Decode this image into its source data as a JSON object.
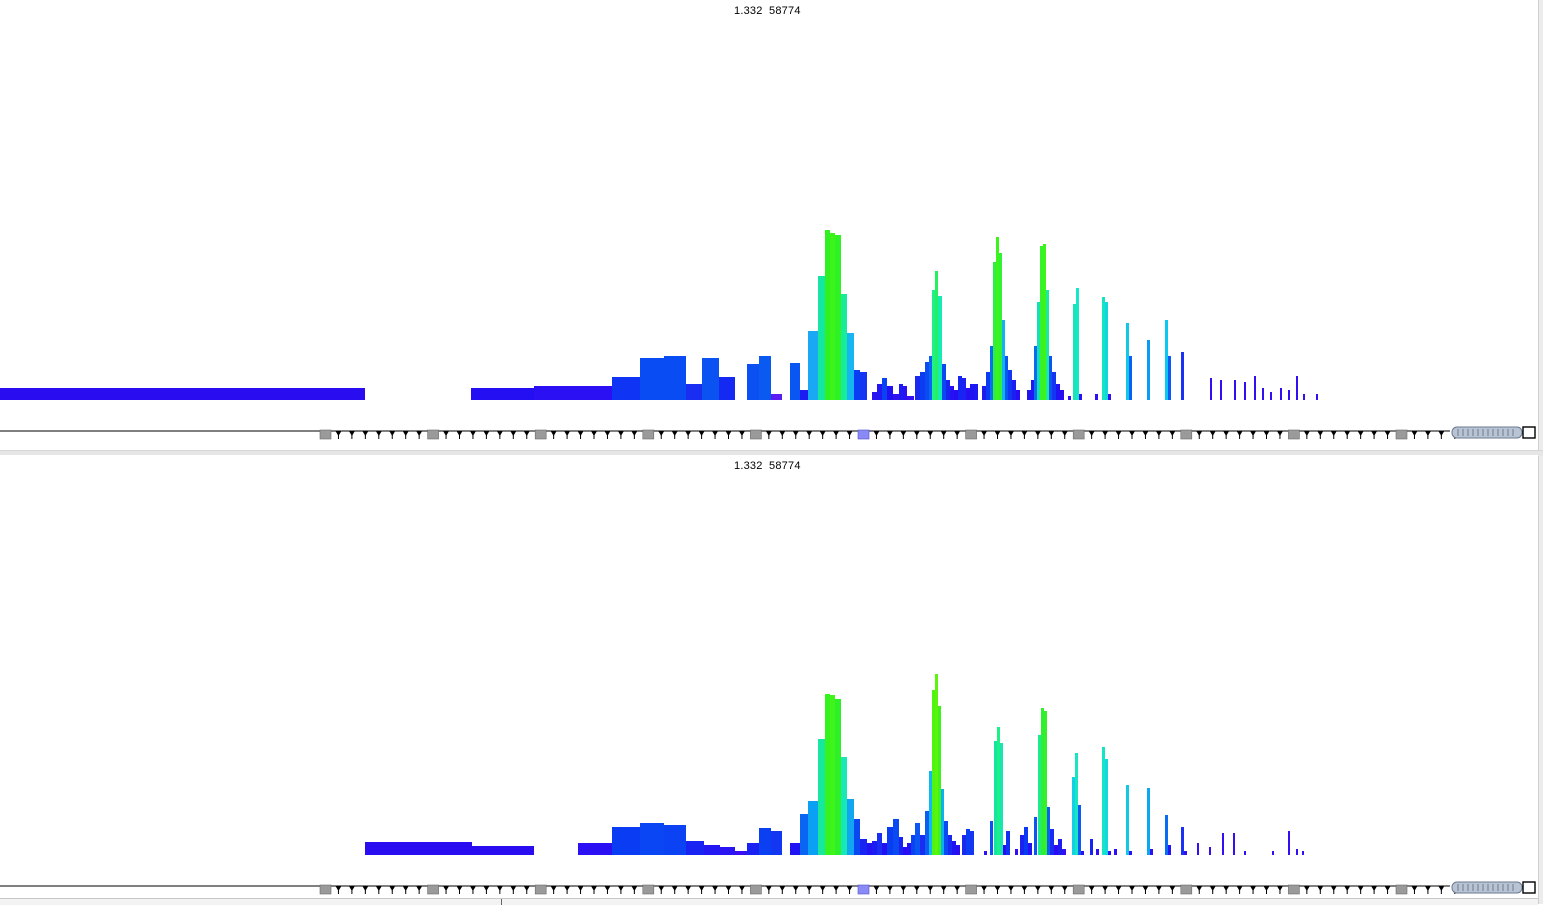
{
  "panes": [
    {
      "id": "top",
      "readout_mz": "1.332",
      "readout_intensity": "58774",
      "peaks": [
        [
          0,
          365,
          388,
          400,
          "#2a0cf0"
        ],
        [
          471,
          534,
          388,
          400,
          "#240ef2"
        ],
        [
          534,
          612,
          386,
          400,
          "#2a10f2"
        ],
        [
          612,
          640,
          377,
          400,
          "#1034f4"
        ],
        [
          640,
          664,
          358,
          400,
          "#0a4cf4"
        ],
        [
          664,
          686,
          356,
          400,
          "#0a4cf4"
        ],
        [
          686,
          702,
          384,
          400,
          "#1a2ef2"
        ],
        [
          702,
          719,
          358,
          400,
          "#0a52f2"
        ],
        [
          719,
          735,
          377,
          400,
          "#142af2"
        ],
        [
          747,
          759,
          364,
          400,
          "#0a50f2"
        ],
        [
          759,
          771,
          356,
          400,
          "#0a5af2"
        ],
        [
          771,
          782,
          394,
          400,
          "#5a1ef2"
        ],
        [
          790,
          800,
          363,
          400,
          "#0a56f2"
        ],
        [
          800,
          808,
          390,
          400,
          "#1a1cf2"
        ],
        [
          808,
          818,
          331,
          400,
          "#1aa8f4"
        ],
        [
          818,
          825,
          276,
          400,
          "#14e6a4"
        ],
        [
          825,
          830,
          230,
          400,
          "#30f020"
        ],
        [
          830,
          835,
          233,
          400,
          "#3cf41a"
        ],
        [
          835,
          841,
          235,
          400,
          "#2ef224"
        ],
        [
          841,
          847,
          294,
          400,
          "#18ec98"
        ],
        [
          847,
          854,
          333,
          400,
          "#16b6f0"
        ],
        [
          854,
          860,
          370,
          400,
          "#0a3ef2"
        ],
        [
          860,
          867,
          372,
          400,
          "#1236f2"
        ],
        [
          872,
          877,
          392,
          400,
          "#2a14f2"
        ],
        [
          877,
          882,
          384,
          400,
          "#2418f2"
        ],
        [
          882,
          887,
          378,
          400,
          "#0a44f2"
        ],
        [
          887,
          893,
          386,
          400,
          "#2010f2"
        ],
        [
          893,
          899,
          394,
          400,
          "#3012f2"
        ],
        [
          899,
          903,
          384,
          400,
          "#1c1cf2"
        ],
        [
          903,
          907,
          386,
          400,
          "#2a10f2"
        ],
        [
          907,
          914,
          396,
          400,
          "#3a0ef2"
        ],
        [
          915,
          920,
          376,
          400,
          "#1a28f2"
        ],
        [
          920,
          925,
          372,
          400,
          "#0a3cf2"
        ],
        [
          925,
          929,
          362,
          400,
          "#0a4cf2"
        ],
        [
          929,
          932,
          356,
          400,
          "#0a64f2"
        ],
        [
          932,
          935,
          290,
          400,
          "#1ef08a"
        ],
        [
          935,
          938,
          271,
          400,
          "#26f060"
        ],
        [
          938,
          942,
          296,
          400,
          "#14ecb4"
        ],
        [
          942,
          946,
          364,
          400,
          "#0a48f2"
        ],
        [
          946,
          950,
          380,
          400,
          "#1a22f2"
        ],
        [
          950,
          954,
          386,
          400,
          "#2412f2"
        ],
        [
          954,
          958,
          390,
          400,
          "#2a0cf2"
        ],
        [
          958,
          962,
          376,
          400,
          "#1626f2"
        ],
        [
          962,
          966,
          378,
          400,
          "#1c22f2"
        ],
        [
          966,
          970,
          388,
          400,
          "#2610f2"
        ],
        [
          970,
          974,
          384,
          400,
          "#2014f2"
        ],
        [
          974,
          978,
          384,
          400,
          "#1c1af2"
        ],
        [
          982,
          986,
          386,
          400,
          "#1e1af2"
        ],
        [
          986,
          990,
          372,
          400,
          "#0a3cf2"
        ],
        [
          990,
          993,
          346,
          400,
          "#0a70f2"
        ],
        [
          993,
          996,
          262,
          400,
          "#2ef040"
        ],
        [
          996,
          999,
          237,
          400,
          "#3cf41a"
        ],
        [
          999,
          1002,
          253,
          400,
          "#30f038"
        ],
        [
          1002,
          1005,
          320,
          400,
          "#10b2f2"
        ],
        [
          1005,
          1008,
          356,
          400,
          "#0a58f2"
        ],
        [
          1008,
          1012,
          370,
          400,
          "#1236f2"
        ],
        [
          1012,
          1016,
          380,
          400,
          "#1a20f2"
        ],
        [
          1016,
          1020,
          390,
          400,
          "#2a0cf2"
        ],
        [
          1027,
          1031,
          390,
          400,
          "#2412f2"
        ],
        [
          1031,
          1034,
          380,
          400,
          "#1c1af2"
        ],
        [
          1034,
          1037,
          346,
          400,
          "#0a6cf2"
        ],
        [
          1037,
          1040,
          302,
          400,
          "#16e0b6"
        ],
        [
          1040,
          1043,
          246,
          400,
          "#36f22a"
        ],
        [
          1043,
          1046,
          244,
          400,
          "#3cf41a"
        ],
        [
          1046,
          1049,
          290,
          400,
          "#1cec9a"
        ],
        [
          1049,
          1052,
          356,
          400,
          "#0a56f2"
        ],
        [
          1052,
          1056,
          372,
          400,
          "#1236f2"
        ],
        [
          1056,
          1060,
          384,
          400,
          "#2014f2"
        ],
        [
          1060,
          1064,
          390,
          400,
          "#2a0cf2"
        ],
        [
          1068,
          1071,
          396,
          400,
          "#3010f2"
        ],
        [
          1073,
          1076,
          304,
          400,
          "#18e4b8"
        ],
        [
          1076,
          1079,
          288,
          400,
          "#14e8c6"
        ],
        [
          1079,
          1082,
          394,
          400,
          "#2a10f2"
        ],
        [
          1095,
          1098,
          394,
          400,
          "#2a10f2"
        ],
        [
          1102,
          1105,
          297,
          400,
          "#16e4c0"
        ],
        [
          1105,
          1108,
          302,
          400,
          "#12d6e0"
        ],
        [
          1108,
          1111,
          394,
          400,
          "#3010f2"
        ],
        [
          1126,
          1129,
          323,
          400,
          "#12c8e8"
        ],
        [
          1129,
          1132,
          356,
          400,
          "#0a60f2"
        ],
        [
          1147,
          1150,
          340,
          400,
          "#0a9cf2"
        ],
        [
          1165,
          1168,
          320,
          400,
          "#0ac8f4"
        ],
        [
          1168,
          1171,
          356,
          400,
          "#0a5cf2"
        ],
        [
          1181,
          1184,
          352,
          400,
          "#1a30f2"
        ],
        [
          1210,
          1212,
          378,
          400,
          "#3010f2"
        ],
        [
          1220,
          1222,
          380,
          400,
          "#3010f2"
        ],
        [
          1234,
          1236,
          380,
          400,
          "#3010f2"
        ],
        [
          1244,
          1246,
          382,
          400,
          "#3010f2"
        ],
        [
          1254,
          1256,
          376,
          400,
          "#3010f2"
        ],
        [
          1262,
          1264,
          388,
          400,
          "#3010f2"
        ],
        [
          1270,
          1272,
          392,
          400,
          "#3010f2"
        ],
        [
          1280,
          1282,
          388,
          400,
          "#3010f2"
        ],
        [
          1288,
          1290,
          390,
          400,
          "#3010f2"
        ],
        [
          1296,
          1298,
          376,
          400,
          "#3010f2"
        ],
        [
          1303,
          1305,
          394,
          400,
          "#3010f2"
        ],
        [
          1316,
          1318,
          394,
          400,
          "#3010f2"
        ]
      ]
    },
    {
      "id": "bottom",
      "readout_mz": "1.332",
      "readout_intensity": "58774",
      "peaks": [
        [
          365,
          472,
          387,
          400,
          "#2a0cf0"
        ],
        [
          472,
          534,
          391,
          400,
          "#2a0cf0"
        ],
        [
          578,
          612,
          388,
          400,
          "#2a10f2"
        ],
        [
          612,
          640,
          372,
          400,
          "#0a3cf4"
        ],
        [
          640,
          664,
          368,
          400,
          "#0a46f4"
        ],
        [
          664,
          686,
          370,
          400,
          "#0a42f4"
        ],
        [
          686,
          704,
          386,
          400,
          "#1a24f2"
        ],
        [
          704,
          720,
          390,
          400,
          "#2418f2"
        ],
        [
          720,
          735,
          392,
          400,
          "#2a14f2"
        ],
        [
          735,
          747,
          396,
          400,
          "#3a0ef2"
        ],
        [
          747,
          759,
          388,
          400,
          "#1a22f2"
        ],
        [
          759,
          771,
          373,
          400,
          "#0a40f2"
        ],
        [
          771,
          782,
          376,
          400,
          "#1236f2"
        ],
        [
          790,
          800,
          388,
          400,
          "#2014f2"
        ],
        [
          800,
          808,
          359,
          400,
          "#0a66f2"
        ],
        [
          808,
          818,
          346,
          400,
          "#0aa0f4"
        ],
        [
          818,
          825,
          284,
          400,
          "#16e8a0"
        ],
        [
          825,
          830,
          239,
          400,
          "#36f21e"
        ],
        [
          830,
          835,
          240,
          400,
          "#3ef418"
        ],
        [
          835,
          841,
          244,
          400,
          "#2ef028"
        ],
        [
          841,
          847,
          302,
          400,
          "#18e8b4"
        ],
        [
          847,
          854,
          344,
          400,
          "#10a6f0"
        ],
        [
          854,
          860,
          364,
          400,
          "#0a48f2"
        ],
        [
          860,
          867,
          384,
          400,
          "#1a24f2"
        ],
        [
          867,
          872,
          388,
          400,
          "#2014f2"
        ],
        [
          872,
          877,
          386,
          400,
          "#1c1cf2"
        ],
        [
          877,
          882,
          378,
          400,
          "#1a2ef2"
        ],
        [
          882,
          887,
          388,
          400,
          "#2010f2"
        ],
        [
          887,
          893,
          372,
          400,
          "#0a3cf2"
        ],
        [
          893,
          899,
          364,
          400,
          "#0a4af2"
        ],
        [
          899,
          903,
          382,
          400,
          "#1a22f2"
        ],
        [
          903,
          907,
          392,
          400,
          "#2a0cf2"
        ],
        [
          907,
          911,
          388,
          400,
          "#2412f2"
        ],
        [
          911,
          915,
          380,
          400,
          "#0a44f2"
        ],
        [
          915,
          920,
          368,
          400,
          "#0a56f2"
        ],
        [
          920,
          925,
          380,
          400,
          "#1a2cf2"
        ],
        [
          925,
          929,
          356,
          400,
          "#0a5ef2"
        ],
        [
          929,
          932,
          316,
          400,
          "#10b8f2"
        ],
        [
          932,
          935,
          235,
          400,
          "#4ef414"
        ],
        [
          935,
          938,
          219,
          400,
          "#5cf40a"
        ],
        [
          938,
          941,
          251,
          400,
          "#3ef21c"
        ],
        [
          941,
          944,
          334,
          400,
          "#0ab0f2"
        ],
        [
          944,
          948,
          366,
          400,
          "#0a4cf2"
        ],
        [
          948,
          952,
          380,
          400,
          "#1a28f2"
        ],
        [
          952,
          956,
          386,
          400,
          "#2014f2"
        ],
        [
          956,
          960,
          390,
          400,
          "#2a0cf2"
        ],
        [
          962,
          966,
          380,
          400,
          "#1a28f2"
        ],
        [
          966,
          970,
          374,
          400,
          "#0a3ef2"
        ],
        [
          970,
          974,
          376,
          400,
          "#1236f2"
        ],
        [
          984,
          987,
          396,
          400,
          "#3010f2"
        ],
        [
          990,
          993,
          366,
          400,
          "#0a52f2"
        ],
        [
          994,
          997,
          286,
          400,
          "#16e4a4"
        ],
        [
          997,
          1000,
          272,
          400,
          "#1ef088"
        ],
        [
          1000,
          1003,
          288,
          400,
          "#18e6b0"
        ],
        [
          1003,
          1006,
          390,
          400,
          "#2a0cf2"
        ],
        [
          1006,
          1010,
          376,
          400,
          "#1230f2"
        ],
        [
          1015,
          1018,
          394,
          400,
          "#3010f2"
        ],
        [
          1020,
          1024,
          380,
          400,
          "#1a22f2"
        ],
        [
          1024,
          1028,
          372,
          400,
          "#0a3af2"
        ],
        [
          1028,
          1032,
          388,
          400,
          "#2412f2"
        ],
        [
          1034,
          1037,
          362,
          400,
          "#0a58f2"
        ],
        [
          1038,
          1041,
          280,
          400,
          "#1eea90"
        ],
        [
          1041,
          1044,
          253,
          400,
          "#2ef030"
        ],
        [
          1044,
          1047,
          256,
          400,
          "#34f02a"
        ],
        [
          1047,
          1050,
          352,
          400,
          "#0a62f2"
        ],
        [
          1050,
          1054,
          374,
          400,
          "#1a2cf2"
        ],
        [
          1054,
          1058,
          390,
          400,
          "#2a0cf2"
        ],
        [
          1058,
          1062,
          384,
          400,
          "#1c1cf2"
        ],
        [
          1062,
          1066,
          394,
          400,
          "#3010f2"
        ],
        [
          1072,
          1075,
          322,
          400,
          "#12d0e8"
        ],
        [
          1075,
          1078,
          298,
          400,
          "#18e6c0"
        ],
        [
          1078,
          1081,
          350,
          400,
          "#0a5cf2"
        ],
        [
          1081,
          1084,
          396,
          400,
          "#3010f2"
        ],
        [
          1090,
          1093,
          384,
          400,
          "#1a22f2"
        ],
        [
          1096,
          1099,
          394,
          400,
          "#3010f2"
        ],
        [
          1102,
          1105,
          292,
          400,
          "#16e4c4"
        ],
        [
          1105,
          1108,
          304,
          400,
          "#12d8e0"
        ],
        [
          1108,
          1111,
          396,
          400,
          "#3010f2"
        ],
        [
          1114,
          1117,
          394,
          400,
          "#3010f2"
        ],
        [
          1126,
          1129,
          330,
          400,
          "#12c8e8"
        ],
        [
          1129,
          1132,
          396,
          400,
          "#3010f2"
        ],
        [
          1147,
          1150,
          333,
          400,
          "#0aa8f2"
        ],
        [
          1150,
          1153,
          394,
          400,
          "#3010f2"
        ],
        [
          1165,
          1168,
          360,
          400,
          "#0a6cf2"
        ],
        [
          1168,
          1171,
          390,
          400,
          "#2014f2"
        ],
        [
          1181,
          1184,
          372,
          400,
          "#1a30f2"
        ],
        [
          1184,
          1187,
          396,
          400,
          "#3010f2"
        ],
        [
          1197,
          1199,
          388,
          400,
          "#3010f2"
        ],
        [
          1209,
          1211,
          392,
          400,
          "#3010f2"
        ],
        [
          1222,
          1224,
          378,
          400,
          "#3010f2"
        ],
        [
          1233,
          1235,
          378,
          400,
          "#3010f2"
        ],
        [
          1244,
          1246,
          396,
          400,
          "#3010f2"
        ],
        [
          1272,
          1274,
          396,
          400,
          "#3010f2"
        ],
        [
          1288,
          1290,
          376,
          400,
          "#3010f2"
        ],
        [
          1296,
          1298,
          394,
          400,
          "#3010f2"
        ],
        [
          1302,
          1304,
          396,
          400,
          "#3010f2"
        ]
      ]
    }
  ]
}
